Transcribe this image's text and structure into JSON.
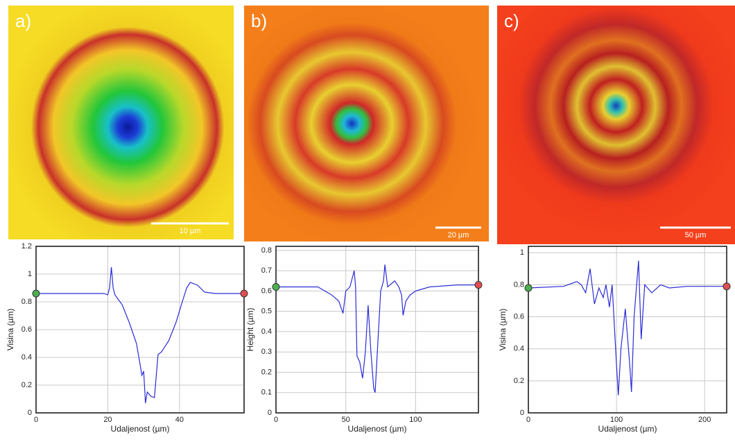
{
  "chart_data": [
    {
      "type": "line",
      "panel_label": "a)",
      "scale_bar": "10 µm",
      "xlabel": "Udaljenost (µm)",
      "ylabel": "Visina (µm)",
      "xlim": [
        0,
        58
      ],
      "xticks": [
        0,
        20,
        40
      ],
      "ylim": [
        0,
        1.2
      ],
      "yticks": [
        0,
        0.2,
        0.4,
        0.6,
        0.8,
        1,
        1.2
      ],
      "grid": true,
      "color": "#2a2ad8",
      "x": [
        0,
        5,
        10,
        15,
        19,
        20,
        20.5,
        21,
        21.5,
        22,
        24,
        26,
        28,
        29,
        29.5,
        30,
        30.5,
        31,
        32,
        33,
        34,
        35,
        37,
        39,
        41,
        42,
        43,
        45,
        47,
        50,
        55,
        58
      ],
      "values": [
        0.86,
        0.86,
        0.86,
        0.86,
        0.86,
        0.85,
        0.9,
        1.05,
        0.9,
        0.85,
        0.78,
        0.65,
        0.5,
        0.35,
        0.27,
        0.3,
        0.07,
        0.15,
        0.12,
        0.11,
        0.42,
        0.44,
        0.52,
        0.65,
        0.82,
        0.9,
        0.94,
        0.92,
        0.87,
        0.86,
        0.86,
        0.86
      ]
    },
    {
      "type": "line",
      "panel_label": "b)",
      "scale_bar": "20 µm",
      "xlabel": "Udaljenost (µm)",
      "ylabel": "Height (µm)",
      "xlim": [
        0,
        145
      ],
      "xticks": [
        0,
        50,
        100
      ],
      "ylim": [
        0,
        0.82
      ],
      "yticks": [
        0,
        0.1,
        0.2,
        0.3,
        0.4,
        0.5,
        0.6,
        0.7,
        0.8
      ],
      "grid": true,
      "color": "#2a2ad8",
      "x": [
        0,
        20,
        30,
        35,
        40,
        45,
        48,
        50,
        53,
        56,
        57,
        58,
        60,
        62,
        64,
        66,
        68,
        70,
        71,
        73,
        75,
        77,
        78,
        80,
        85,
        88,
        90,
        91,
        93,
        96,
        100,
        110,
        130,
        145
      ],
      "values": [
        0.62,
        0.62,
        0.62,
        0.6,
        0.58,
        0.55,
        0.49,
        0.6,
        0.62,
        0.7,
        0.62,
        0.28,
        0.25,
        0.17,
        0.3,
        0.53,
        0.3,
        0.12,
        0.1,
        0.35,
        0.6,
        0.65,
        0.73,
        0.62,
        0.65,
        0.62,
        0.58,
        0.48,
        0.55,
        0.58,
        0.6,
        0.62,
        0.63,
        0.63
      ]
    },
    {
      "type": "line",
      "panel_label": "c)",
      "scale_bar": "50 µm",
      "xlabel": "Udaljenost (µm)",
      "ylabel": "Visina (µm)",
      "xlim": [
        0,
        225
      ],
      "xticks": [
        0,
        100,
        200
      ],
      "ylim": [
        0,
        1.04
      ],
      "yticks": [
        0,
        0.2,
        0.4,
        0.6,
        0.8,
        1
      ],
      "grid": true,
      "color": "#2a2ad8",
      "x": [
        0,
        40,
        55,
        60,
        65,
        70,
        75,
        80,
        85,
        88,
        92,
        95,
        100,
        102,
        105,
        110,
        115,
        117,
        120,
        125,
        128,
        132,
        140,
        150,
        160,
        180,
        200,
        225
      ],
      "values": [
        0.78,
        0.79,
        0.82,
        0.8,
        0.75,
        0.9,
        0.68,
        0.78,
        0.72,
        0.8,
        0.66,
        0.8,
        0.3,
        0.11,
        0.4,
        0.65,
        0.3,
        0.13,
        0.6,
        0.95,
        0.46,
        0.8,
        0.75,
        0.8,
        0.78,
        0.79,
        0.79,
        0.79
      ]
    }
  ]
}
